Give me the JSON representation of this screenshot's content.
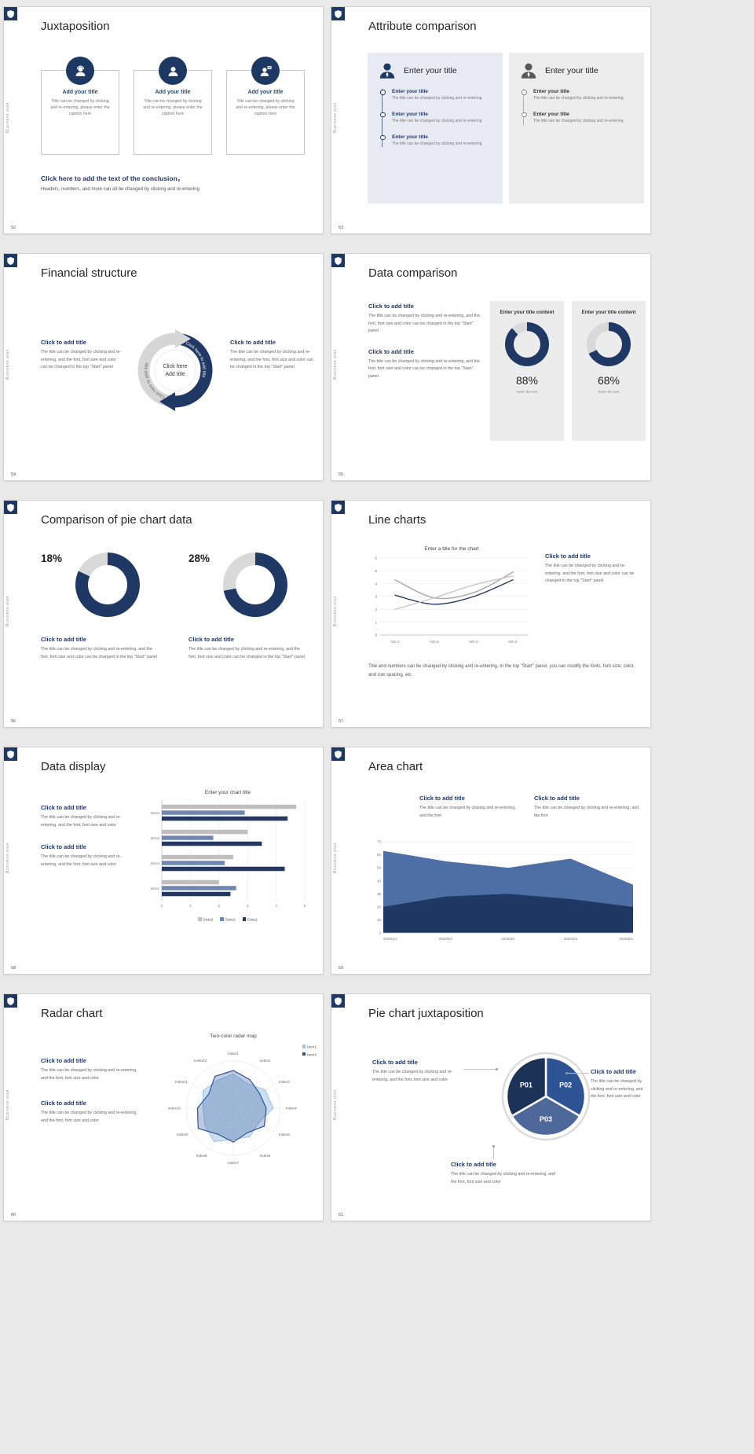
{
  "window": {
    "background": "#e9e9e9",
    "accent": "#1f3864"
  },
  "common": {
    "sidebar_text": "Business plan"
  },
  "slides": [
    {
      "number": "52",
      "title": "Juxtaposition",
      "cards": [
        {
          "icon": "support-agent-icon",
          "title": "Add your title",
          "caption": "Title can be changed by clicking and re-entering, please enter the caption here"
        },
        {
          "icon": "person-icon",
          "title": "Add your title",
          "caption": "Title can be changed by clicking and re-entering, please enter the caption here"
        },
        {
          "icon": "presenter-icon",
          "title": "Add your title",
          "caption": "Title can be changed by clicking and re-entering, please enter the caption here"
        }
      ],
      "conclusion": {
        "title": "Click here to add the text of the conclusion，",
        "text": "Headers, numbers, and more can all be changed by clicking and re-entering"
      }
    },
    {
      "number": "53",
      "title": "Attribute comparison",
      "left": {
        "header": "Enter your title",
        "items": [
          {
            "title": "Enter your title",
            "caption": "The title can be changed by clicking and re-entering"
          },
          {
            "title": "Enter your title",
            "caption": "The title can be changed by clicking and re-entering"
          },
          {
            "title": "Enter your title",
            "caption": "The title can be changed by clicking and re-entering"
          }
        ]
      },
      "right": {
        "header": "Enter your title",
        "items": [
          {
            "title": "Enter your title",
            "caption": "The title can be changed by clicking and re-entering"
          },
          {
            "title": "Enter your title",
            "caption": "The title can be changed by clicking and re-entering"
          }
        ]
      }
    },
    {
      "number": "54",
      "title": "Financial structure",
      "left_block": {
        "title": "Click to add title",
        "text": "The title can be changed by clicking and re-entering, and the font, font size and color can be changed in the top \"Start\" panel"
      },
      "right_block": {
        "title": "Click to add title",
        "text": "The title can be changed by clicking and re-entering, and the font, font size and color can be changed in the top \"Start\" panel"
      },
      "center": {
        "line1": "Click here",
        "line2": "Add title",
        "arc_text_top": "Click here to add title",
        "arc_text_bottom": "Click here to add title"
      }
    },
    {
      "number": "55",
      "title": "Data comparison",
      "blocks": [
        {
          "title": "Click to add title",
          "text": "The title can be changed by clicking and re-entering, and the font, font size and color can be changed in the top \"Start\" panel"
        },
        {
          "title": "Click to add title",
          "text": "The title can be changed by clicking and re-entering, and the font, font size and color can be changed in the top \"Start\" panel"
        }
      ],
      "panels": [
        {
          "header": "Enter your title content",
          "donut": {
            "value": 88,
            "color": "#1f3864",
            "rest": "#d9d9d9",
            "mode": "fill"
          },
          "value_label": "88%",
          "caption": "Enter the text"
        },
        {
          "header": "Enter your title content",
          "donut": {
            "value": 68,
            "color": "#1f3864",
            "rest": "#d9d9d9",
            "mode": "fill"
          },
          "value_label": "68%",
          "caption": "Enter the text"
        }
      ]
    },
    {
      "number": "56",
      "title": "Comparison of pie chart data",
      "halves": [
        {
          "pct_label": "18%",
          "donut": {
            "value": 18,
            "color": "#1f3864",
            "rest": "#d9d9d9",
            "mode": "gap"
          },
          "block_title": "Click to add title",
          "block_text": "The title can be changed by clicking and re-entering, and the font, font size and color can be changed in the top \"Start\" panel"
        },
        {
          "pct_label": "28%",
          "donut": {
            "value": 28,
            "color": "#1f3864",
            "rest": "#d9d9d9",
            "mode": "gap"
          },
          "block_title": "Click to add title",
          "block_text": "The title can be changed by clicking and re-entering, and the font, font size and color can be changed in the top \"Start\" panel"
        }
      ]
    },
    {
      "number": "57",
      "title": "Line charts",
      "chart": {
        "type": "line",
        "title": "Enter a title for the chart",
        "categories": [
          "NO.1",
          "NO.2",
          "NO.3",
          "NO.4"
        ],
        "ylim": [
          0,
          6
        ],
        "yticks": [
          0,
          1,
          2,
          3,
          4,
          5,
          6
        ],
        "series": [
          {
            "name": "Series1",
            "color": "#a6a6a6",
            "values": [
              4.3,
              2.9,
              3.3,
              4.9
            ]
          },
          {
            "name": "Series2",
            "color": "#1f3864",
            "values": [
              3.1,
              2.4,
              3.0,
              4.3
            ]
          },
          {
            "name": "Series3",
            "color": "#c9c9c9",
            "values": [
              2.0,
              2.9,
              3.9,
              4.6
            ]
          }
        ]
      },
      "block": {
        "title": "Click to add title",
        "text": "The title can be changed by clicking and re-entering, and the font, font size and color can be changed in the top \"Start\" panel"
      },
      "note": "Title and numbers can be changed by clicking and re-entering. In the top \"Start\" panel, you can modify the fonts, font size, color, and row spacing, etc"
    },
    {
      "number": "58",
      "title": "Data display",
      "blocks": [
        {
          "title": "Click to add title",
          "text": "The title can be changed by clicking and re-entering, and the font, font size and color"
        },
        {
          "title": "Click to add title",
          "text": "The title can be changed by clicking and re-entering, and the font, font size and color"
        }
      ],
      "chart": {
        "type": "bar_h",
        "title": "Enter your chart title",
        "categories": [
          "Item1",
          "Item2",
          "Item3",
          "Item4"
        ],
        "xlim": [
          0,
          5
        ],
        "xticks": [
          0,
          1,
          2,
          3,
          4,
          5
        ],
        "series": [
          {
            "name": "Data1",
            "color": "#1f3864",
            "values": [
              2.4,
              4.3,
              3.5,
              4.4
            ]
          },
          {
            "name": "Data2",
            "color": "#6e87b0",
            "values": [
              2.6,
              2.2,
              1.8,
              2.9
            ]
          },
          {
            "name": "Data3",
            "color": "#bfbfbf",
            "values": [
              2.0,
              2.5,
              3.0,
              4.7
            ]
          }
        ],
        "legend_order": [
          "Data3",
          "Data2",
          "Data1"
        ]
      }
    },
    {
      "number": "59",
      "title": "Area chart",
      "blocks": [
        {
          "title": "Click to add title",
          "text": "The title can be changed by clicking and re-entering, and the font"
        },
        {
          "title": "Click to add title",
          "text": "The title can be changed by clicking and re-entering, and the font"
        }
      ],
      "chart": {
        "type": "area",
        "x": [
          "2020/1/1",
          "2020/2/1",
          "2020/3/1",
          "2020/4/1",
          "2020/5/1"
        ],
        "ylim": [
          0,
          70
        ],
        "yticks": [
          0,
          10,
          20,
          30,
          40,
          50,
          60,
          70
        ],
        "series": [
          {
            "name": "Total",
            "color": "#4d6fa5",
            "values": [
              63,
              55,
              50,
              57,
              37
            ]
          },
          {
            "name": "Base",
            "color": "#1f3864",
            "values": [
              20,
              28,
              30,
              26,
              20
            ]
          }
        ]
      }
    },
    {
      "number": "60",
      "title": "Radar chart",
      "blocks": [
        {
          "title": "Click to add title",
          "text": "The title can be changed by clicking and re-entering, and the font, font size and color"
        },
        {
          "title": "Click to add title",
          "text": "The title can be changed by clicking and re-entering, and the font, font size and color"
        }
      ],
      "chart": {
        "type": "radar",
        "title": "Two-color radar map",
        "axes": [
          "Index1",
          "Index2",
          "Index3",
          "Index4",
          "Index5",
          "Index6",
          "Index7",
          "Index8",
          "Index9",
          "Index10",
          "Index11",
          "Index12"
        ],
        "max": 100,
        "series": [
          {
            "name": "Item1",
            "color": "#9dc3e6",
            "values": [
              72,
              60,
              78,
              85,
              62,
              70,
              66,
              82,
              70,
              64,
              74,
              68
            ]
          },
          {
            "name": "Item2",
            "color": "#2e5597",
            "values": [
              80,
              70,
              64,
              70,
              76,
              60,
              72,
              64,
              86,
              76,
              60,
              78
            ]
          }
        ]
      }
    },
    {
      "number": "61",
      "title": "Pie chart juxtaposition",
      "chart": {
        "type": "pie3",
        "segments": [
          {
            "label": "P02",
            "color": "#2f5496",
            "start": 0,
            "end": 120
          },
          {
            "label": "P03",
            "color": "#4f689a",
            "start": 120,
            "end": 240
          },
          {
            "label": "P01",
            "color": "#1c3357",
            "start": 240,
            "end": 360
          }
        ]
      },
      "blocks": [
        {
          "title": "Click to add title",
          "text": "The title can be changed by clicking and re-entering, and the font, font size and color"
        },
        {
          "title": "Click to add title",
          "text": "The title can be changed by clicking and re-entering, and the font, font size and color"
        },
        {
          "title": "Click to add title",
          "text": "The title can be changed by clicking and re-entering, and the font, font size and color"
        }
      ]
    }
  ]
}
